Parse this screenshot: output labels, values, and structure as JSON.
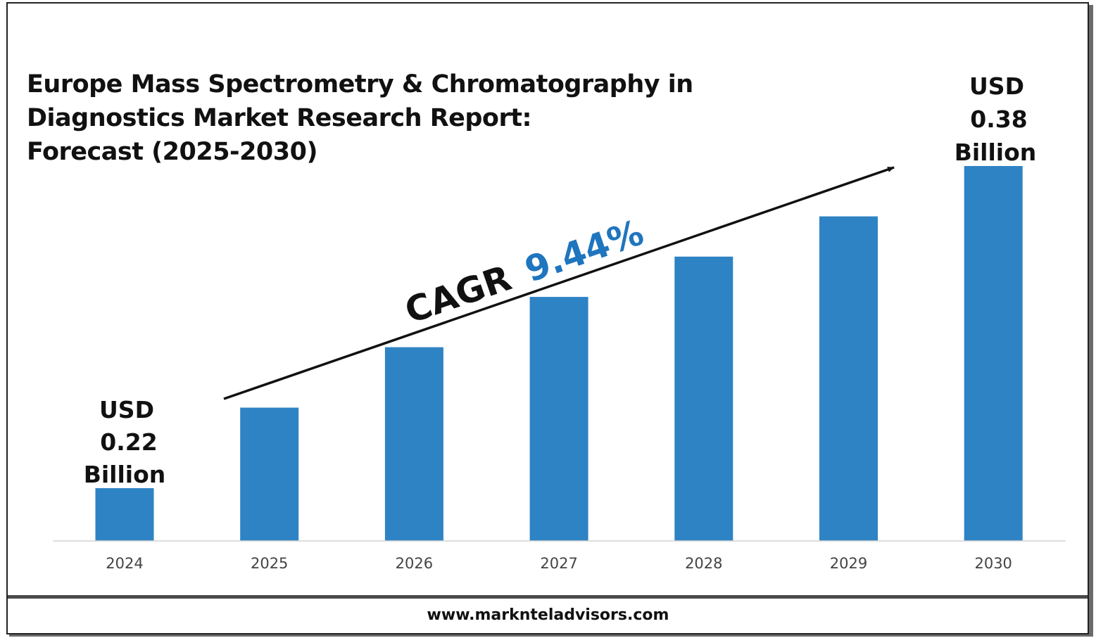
{
  "chart_data": {
    "type": "bar",
    "title": "Europe Mass Spectrometry & Chromatography in Diagnostics Market Research Report: Forecast (2025-2030)",
    "title_lines": [
      "Europe Mass Spectrometry & Chromatography in",
      "Diagnostics Market Research Report:",
      "Forecast (2025-2030)"
    ],
    "categories": [
      "2024",
      "2025",
      "2026",
      "2027",
      "2028",
      "2029",
      "2030"
    ],
    "values": [
      0.22,
      0.26,
      0.29,
      0.315,
      0.335,
      0.355,
      0.38
    ],
    "unit": "USD Billion",
    "ylim": [
      0.2,
      0.38
    ],
    "xlabel": "",
    "ylabel": "",
    "grid": false,
    "legend": "none",
    "annotations": {
      "start_label": [
        "USD",
        "0.22",
        "Billion"
      ],
      "end_label": [
        "USD",
        "0.38",
        "Billion"
      ],
      "cagr_prefix": "CAGR",
      "cagr_value": "9.44%"
    }
  },
  "colors": {
    "bar": "#2e83c4",
    "cagr_value": "#1f75be",
    "text": "#111111",
    "axis_tick": "#444444"
  },
  "footer": {
    "website": "www.marknteladvisors.com"
  }
}
